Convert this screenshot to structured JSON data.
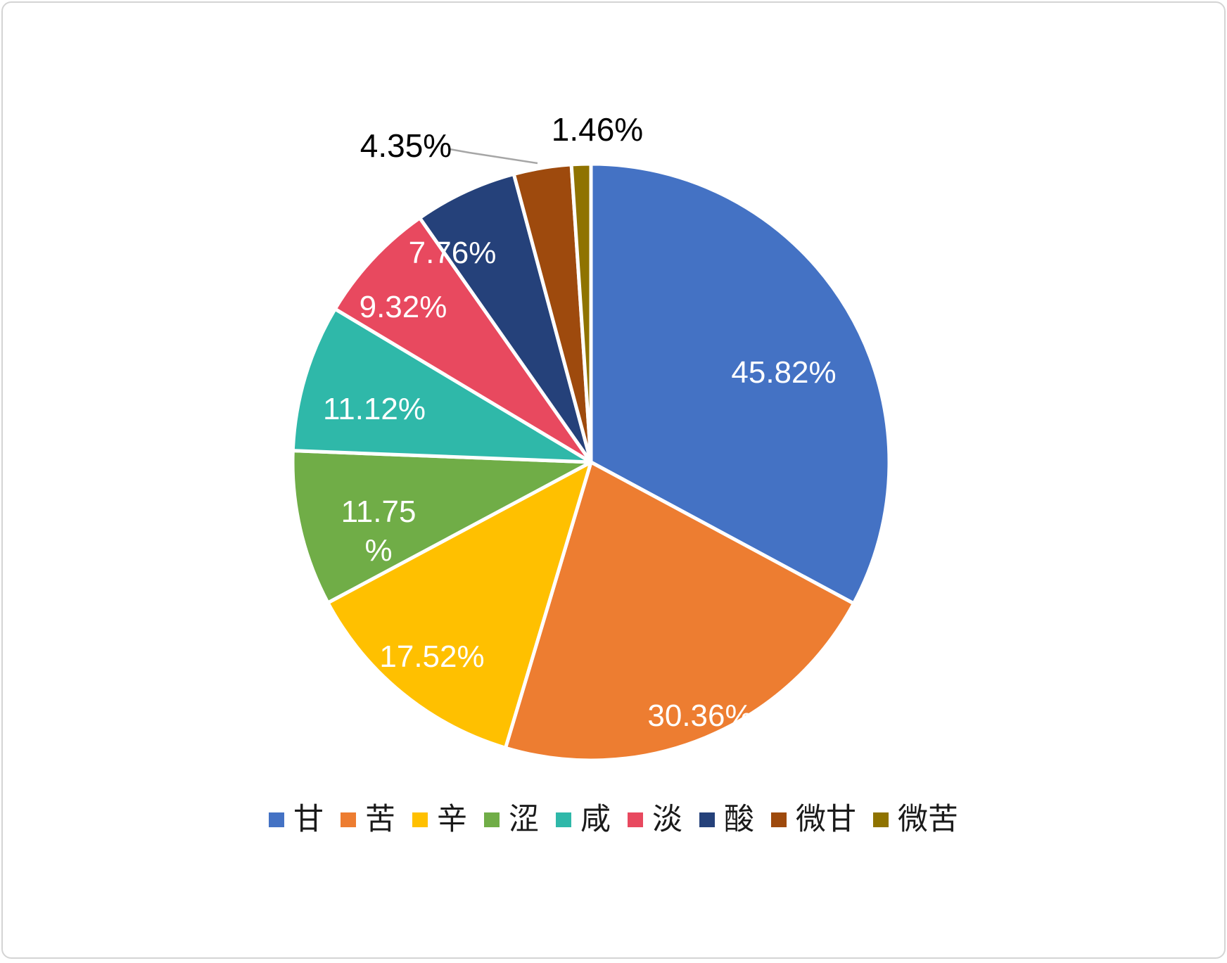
{
  "chart_data": {
    "type": "pie",
    "title": "",
    "legend_position": "bottom",
    "start_angle_deg": 0,
    "direction": "clockwise",
    "background_color": "#FFFFFF",
    "border_color": "#D4D4D4",
    "slice_separator_color": "#FFFFFF",
    "leader_line_color": "#A6A6A6",
    "inside_label_color": "#FFFFFF",
    "outside_label_color": "#000000",
    "categories": [
      "甘",
      "苦",
      "辛",
      "涩",
      "咸",
      "淡",
      "酸",
      "微甘",
      "微苦"
    ],
    "values": [
      45.82,
      30.36,
      17.52,
      11.75,
      11.12,
      9.32,
      7.76,
      4.35,
      1.46
    ],
    "slices": [
      {
        "label": "甘",
        "value": 45.82,
        "display": "45.82%",
        "color": "#4472C4",
        "label_placement": "inside"
      },
      {
        "label": "苦",
        "value": 30.36,
        "display": "30.36%",
        "color": "#ED7D31",
        "label_placement": "inside"
      },
      {
        "label": "辛",
        "value": 17.52,
        "display": "17.52%",
        "color": "#FFC000",
        "label_placement": "inside"
      },
      {
        "label": "涩",
        "value": 11.75,
        "display": "11.75\n%",
        "color": "#70AD47",
        "label_placement": "inside"
      },
      {
        "label": "咸",
        "value": 11.12,
        "display": "11.12%",
        "color": "#2FB8A9",
        "label_placement": "inside"
      },
      {
        "label": "淡",
        "value": 9.32,
        "display": "9.32%",
        "color": "#E8495F",
        "label_placement": "inside"
      },
      {
        "label": "酸",
        "value": 7.76,
        "display": "7.76%",
        "color": "#25417A",
        "label_placement": "inside"
      },
      {
        "label": "微甘",
        "value": 4.35,
        "display": "4.35%",
        "color": "#9E4A0D",
        "label_placement": "outside",
        "has_leader_line": true
      },
      {
        "label": "微苦",
        "value": 1.46,
        "display": "1.46%",
        "color": "#8F7300",
        "label_placement": "outside",
        "has_leader_line": false
      }
    ],
    "legend": [
      "甘",
      "苦",
      "辛",
      "涩",
      "咸",
      "淡",
      "酸",
      "微甘",
      "微苦"
    ]
  }
}
